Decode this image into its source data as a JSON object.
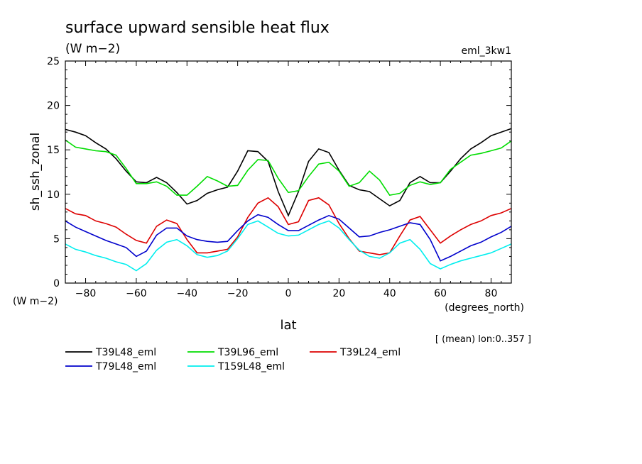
{
  "chart_data": {
    "type": "line",
    "title": "surface upward sensible heat flux",
    "subtitle": "(W m−2)",
    "dataset": "eml_3kw1",
    "ylabel": "sh_ssh_zonal",
    "yunits": "(W m−2)",
    "xlabel": "lat",
    "xunits": "(degrees_north)",
    "note": "[ (mean) lon:0..357 ]",
    "xlim": [
      -88,
      88
    ],
    "ylim": [
      0,
      25
    ],
    "xticks": [
      -80,
      -60,
      -40,
      -20,
      0,
      20,
      40,
      60,
      80
    ],
    "xtick_labels": [
      "−80",
      "−60",
      "−40",
      "−20",
      "0",
      "20",
      "40",
      "60",
      "80"
    ],
    "yticks": [
      0,
      5,
      10,
      15,
      20,
      25
    ],
    "ytick_labels": [
      "0",
      "5",
      "10",
      "15",
      "20",
      "25"
    ],
    "grid": false,
    "legend_position": "bottom-left",
    "x": [
      -88,
      -84,
      -80,
      -76,
      -72,
      -68,
      -64,
      -60,
      -56,
      -52,
      -48,
      -44,
      -40,
      -36,
      -32,
      -28,
      -24,
      -20,
      -16,
      -12,
      -8,
      -4,
      0,
      4,
      8,
      12,
      16,
      20,
      24,
      28,
      32,
      36,
      40,
      44,
      48,
      52,
      56,
      60,
      64,
      68,
      72,
      76,
      80,
      84,
      88
    ],
    "series": [
      {
        "name": "T39L48_eml",
        "color": "#000000",
        "values": [
          17.3,
          17.0,
          16.6,
          15.8,
          15.1,
          14.0,
          12.6,
          11.4,
          11.3,
          11.9,
          11.3,
          10.2,
          8.9,
          9.3,
          10.1,
          10.5,
          10.8,
          12.6,
          14.9,
          14.8,
          13.7,
          10.3,
          7.6,
          10.3,
          13.7,
          15.1,
          14.7,
          12.7,
          11.0,
          10.5,
          10.3,
          9.5,
          8.7,
          9.3,
          11.3,
          12.0,
          11.3,
          11.3,
          12.6,
          14.0,
          15.1,
          15.8,
          16.6,
          17.0,
          17.4
        ]
      },
      {
        "name": "T39L96_eml",
        "color": "#00dd00",
        "values": [
          16.1,
          15.3,
          15.1,
          14.9,
          14.8,
          14.4,
          12.9,
          11.2,
          11.2,
          11.4,
          10.9,
          9.9,
          9.9,
          10.9,
          12.0,
          11.5,
          10.9,
          11.0,
          12.7,
          13.9,
          13.8,
          11.8,
          10.2,
          10.4,
          12.0,
          13.4,
          13.6,
          12.6,
          10.9,
          11.3,
          12.6,
          11.6,
          9.9,
          10.1,
          11.0,
          11.4,
          11.1,
          11.3,
          12.8,
          13.6,
          14.4,
          14.6,
          14.9,
          15.2,
          16.0
        ]
      },
      {
        "name": "T39L24_eml",
        "color": "#dd0000",
        "values": [
          8.4,
          7.8,
          7.6,
          7.0,
          6.7,
          6.3,
          5.5,
          4.8,
          4.5,
          6.4,
          7.1,
          6.7,
          4.9,
          3.4,
          3.4,
          3.6,
          3.8,
          5.2,
          7.4,
          9.0,
          9.6,
          8.6,
          6.6,
          6.9,
          9.3,
          9.6,
          8.8,
          6.7,
          5.0,
          3.6,
          3.4,
          3.2,
          3.4,
          5.3,
          7.1,
          7.5,
          6.0,
          4.5,
          5.3,
          6.0,
          6.6,
          7.0,
          7.6,
          7.9,
          8.4
        ]
      },
      {
        "name": "T79L48_eml",
        "color": "#0000cc",
        "values": [
          7.0,
          6.3,
          5.8,
          5.3,
          4.8,
          4.4,
          4.0,
          3.0,
          3.6,
          5.4,
          6.2,
          6.2,
          5.3,
          4.9,
          4.7,
          4.6,
          4.7,
          5.9,
          7.0,
          7.7,
          7.4,
          6.6,
          5.9,
          5.9,
          6.5,
          7.1,
          7.6,
          7.2,
          6.2,
          5.2,
          5.3,
          5.7,
          6.0,
          6.4,
          6.8,
          6.6,
          4.9,
          2.5,
          3.0,
          3.6,
          4.2,
          4.6,
          5.2,
          5.7,
          6.4
        ]
      },
      {
        "name": "T159L48_eml",
        "color": "#00eeee",
        "values": [
          4.4,
          3.8,
          3.5,
          3.1,
          2.8,
          2.4,
          2.1,
          1.4,
          2.2,
          3.7,
          4.6,
          4.9,
          4.2,
          3.2,
          2.9,
          3.1,
          3.6,
          5.0,
          6.6,
          7.0,
          6.3,
          5.6,
          5.3,
          5.4,
          6.0,
          6.6,
          7.0,
          6.2,
          4.9,
          3.7,
          3.0,
          2.8,
          3.4,
          4.5,
          4.9,
          3.8,
          2.2,
          1.6,
          2.1,
          2.5,
          2.8,
          3.1,
          3.4,
          3.9,
          4.4
        ]
      }
    ]
  }
}
